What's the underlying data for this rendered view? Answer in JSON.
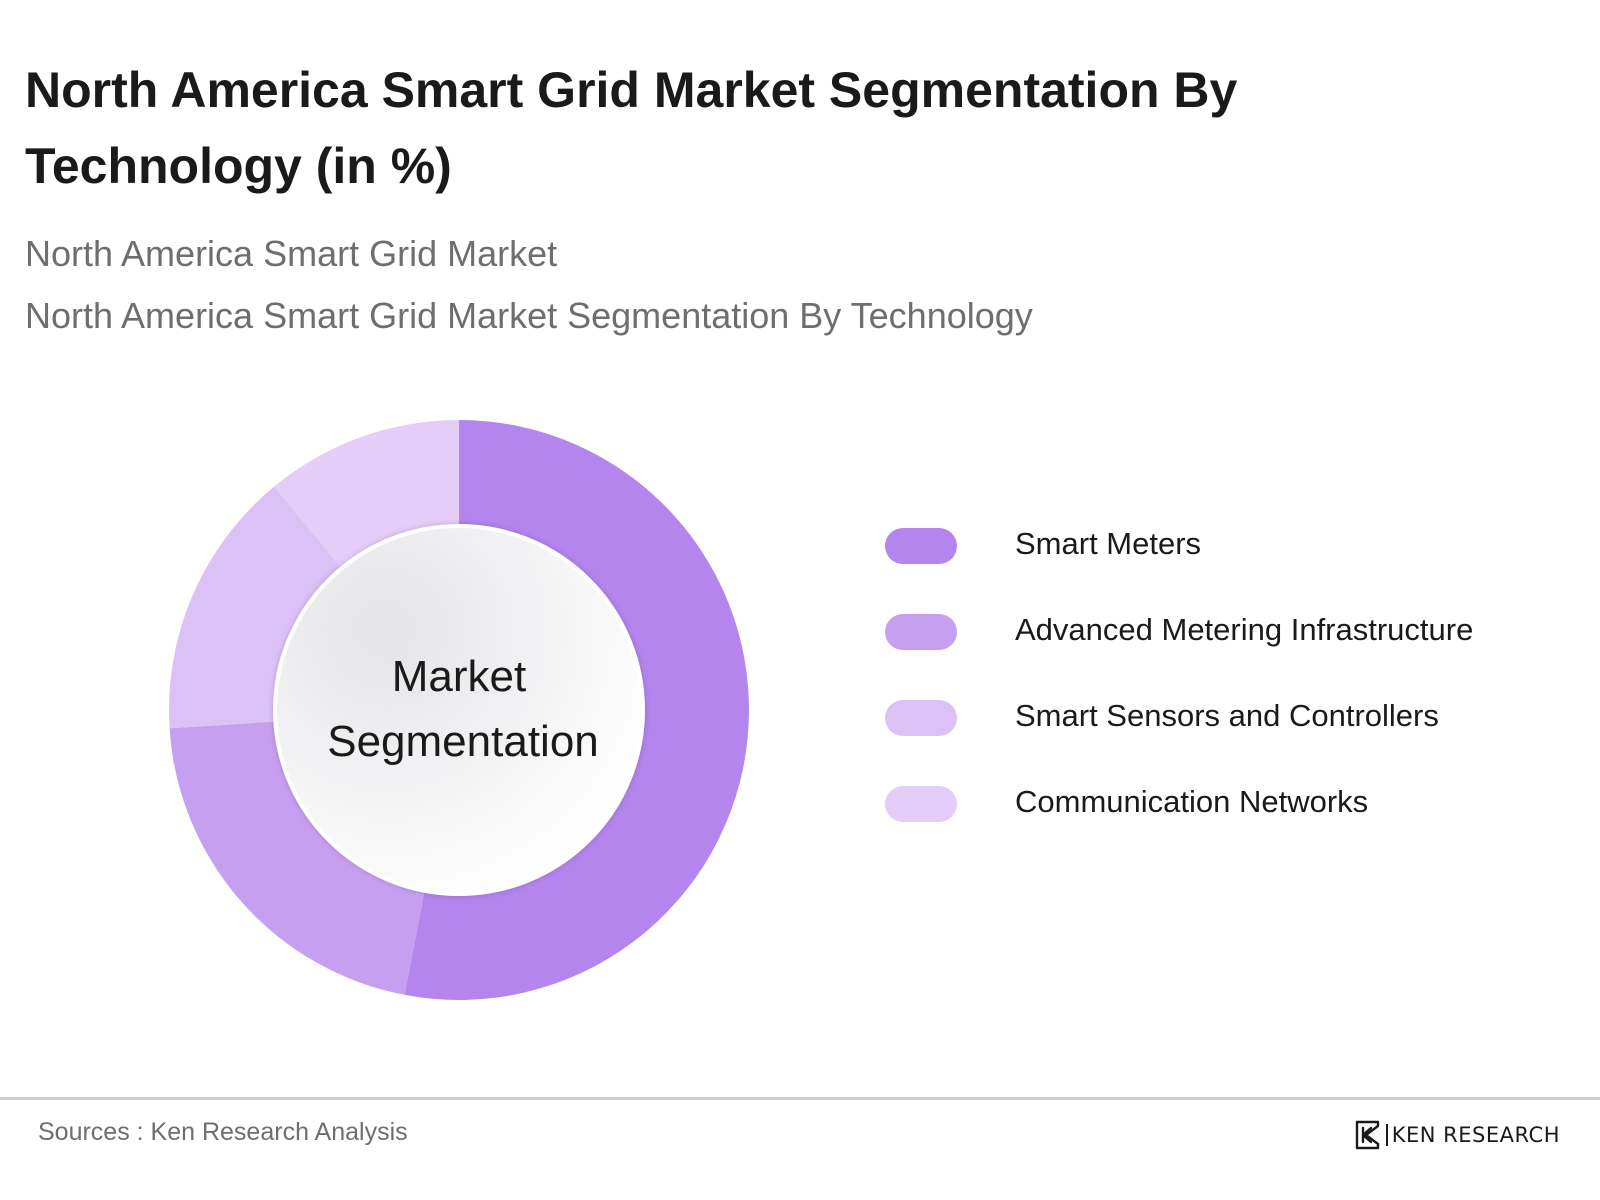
{
  "header": {
    "title": "North America Smart Grid Market Segmentation By Technology (in %)",
    "subtitle_1": "North America Smart Grid Market",
    "subtitle_2": "North America Smart Grid Market Segmentation By Technology"
  },
  "chart_data": {
    "type": "pie",
    "variant": "donut",
    "center_label": [
      "Market",
      "Segmentation"
    ],
    "categories": [
      "Smart Meters",
      "Advanced Metering Infrastructure",
      "Smart Sensors and Controllers",
      "Communication Networks"
    ],
    "values": [
      53,
      21,
      15,
      11
    ],
    "colors": [
      "#b385ed",
      "#c79ff0",
      "#dbc1f6",
      "#e4cdf8"
    ],
    "legend_position": "right"
  },
  "footer": {
    "source": "Sources : Ken Research Analysis",
    "brand": "KEN RESEARCH"
  }
}
